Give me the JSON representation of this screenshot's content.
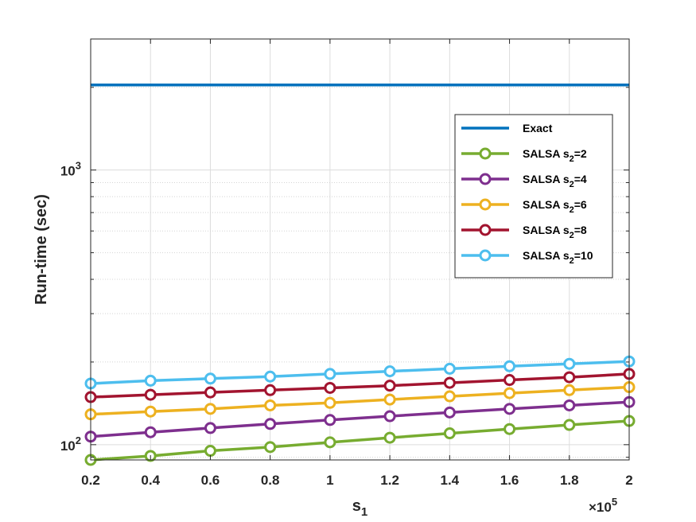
{
  "chart_data": {
    "type": "line",
    "xlabel": "s",
    "xlabel_sub": "1",
    "ylabel": "Run-time (sec)",
    "x_multiplier": {
      "base": "×10",
      "exponent": "5"
    },
    "x": [
      0.2,
      0.4,
      0.6,
      0.8,
      1.0,
      1.2,
      1.4,
      1.6,
      1.8,
      2.0
    ],
    "xlim": [
      0.2,
      2.0
    ],
    "ylim": [
      88,
      3000
    ],
    "yscale": "log",
    "grid": true,
    "legend_position": "right",
    "x_ticks": [
      {
        "value": 0.2,
        "label": "0.2"
      },
      {
        "value": 0.4,
        "label": "0.4"
      },
      {
        "value": 0.6,
        "label": "0.6"
      },
      {
        "value": 0.8,
        "label": "0.8"
      },
      {
        "value": 1.0,
        "label": "1"
      },
      {
        "value": 1.2,
        "label": "1.2"
      },
      {
        "value": 1.4,
        "label": "1.4"
      },
      {
        "value": 1.6,
        "label": "1.6"
      },
      {
        "value": 1.8,
        "label": "1.8"
      },
      {
        "value": 2.0,
        "label": "2"
      }
    ],
    "y_ticks": [
      {
        "value": 100,
        "base": "10",
        "exponent": "2"
      },
      {
        "value": 1000,
        "base": "10",
        "exponent": "3"
      }
    ],
    "series": [
      {
        "name": "Exact",
        "name_sub": "",
        "name_suffix": "",
        "color": "#0072BD",
        "marker": "none",
        "values": [
          2040,
          2040,
          2040,
          2040,
          2040,
          2040,
          2040,
          2040,
          2040,
          2040
        ]
      },
      {
        "name": "SALSA s",
        "name_sub": "2",
        "name_suffix": "=2",
        "color": "#77AC30",
        "marker": "circle",
        "values": [
          88,
          91,
          95,
          98,
          102,
          106,
          110,
          114,
          118,
          122
        ]
      },
      {
        "name": "SALSA s",
        "name_sub": "2",
        "name_suffix": "=4",
        "color": "#7E2F8E",
        "marker": "circle",
        "values": [
          107,
          111,
          115,
          119,
          123,
          127,
          131,
          135,
          139,
          143
        ]
      },
      {
        "name": "SALSA s",
        "name_sub": "2",
        "name_suffix": "=6",
        "color": "#EDB120",
        "marker": "circle",
        "values": [
          129,
          132,
          135,
          139,
          142,
          146,
          150,
          154,
          158,
          162
        ]
      },
      {
        "name": "SALSA s",
        "name_sub": "2",
        "name_suffix": "=8",
        "color": "#A2142F",
        "marker": "circle",
        "values": [
          149,
          152,
          155,
          158,
          161,
          164,
          168,
          172,
          176,
          181
        ]
      },
      {
        "name": "SALSA s",
        "name_sub": "2",
        "name_suffix": "=10",
        "color": "#4DBEEE",
        "marker": "circle",
        "values": [
          167,
          171,
          174,
          177,
          181,
          185,
          189,
          193,
          197,
          201
        ]
      }
    ]
  }
}
